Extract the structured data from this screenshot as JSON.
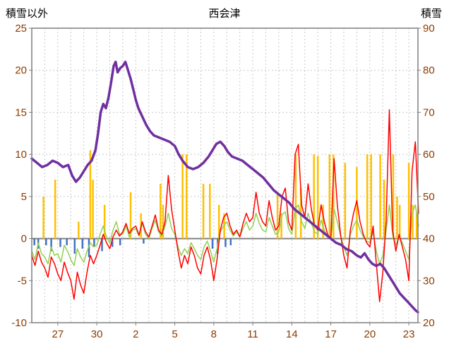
{
  "chart_data": {
    "type": "line",
    "title": "西会津",
    "left_axis": {
      "label": "積雪以外",
      "min": -10,
      "max": 25,
      "step": 5,
      "ticks": [
        25,
        20,
        15,
        10,
        5,
        0,
        -5,
        -10
      ]
    },
    "right_axis": {
      "label": "積雪",
      "min": 20,
      "max": 90,
      "step": 10,
      "ticks": [
        90,
        80,
        70,
        60,
        50,
        40,
        30,
        20
      ]
    },
    "x_axis": {
      "min": 0,
      "max": 29.7,
      "grid_step": 1,
      "ticks": [
        {
          "x": 2,
          "label": "27"
        },
        {
          "x": 5,
          "label": "30"
        },
        {
          "x": 8,
          "label": "2"
        },
        {
          "x": 11,
          "label": "5"
        },
        {
          "x": 14,
          "label": "8"
        },
        {
          "x": 17,
          "label": "11"
        },
        {
          "x": 20,
          "label": "14"
        },
        {
          "x": 23,
          "label": "17"
        },
        {
          "x": 26,
          "label": "20"
        },
        {
          "x": 29,
          "label": "23"
        }
      ]
    },
    "style": {
      "background": "#ffffff",
      "grid_color": "#c9c9c9",
      "zero_line_color": "#808080",
      "border_color": "#7f7f7f",
      "tick_label_color": "#8c3b00",
      "title_color": "#000000"
    },
    "series": [
      {
        "id": "orange-bars",
        "kind": "bar",
        "axis": "left",
        "color": "#FFC000",
        "width": 2.5,
        "points": [
          [
            0.9,
            5
          ],
          [
            1.8,
            7
          ],
          [
            3.6,
            2
          ],
          [
            4.5,
            10.5
          ],
          [
            4.7,
            7
          ],
          [
            5.6,
            4
          ],
          [
            7.6,
            5.5
          ],
          [
            8.4,
            3
          ],
          [
            9.9,
            6.5
          ],
          [
            10.1,
            4
          ],
          [
            11.6,
            10
          ],
          [
            11.9,
            10
          ],
          [
            13.2,
            6.5
          ],
          [
            13.7,
            6.5
          ],
          [
            14.4,
            4
          ],
          [
            14.8,
            3
          ],
          [
            18.9,
            5.5
          ],
          [
            19.2,
            3
          ],
          [
            20.3,
            10
          ],
          [
            20.7,
            6
          ],
          [
            21.7,
            10
          ],
          [
            22,
            9.8
          ],
          [
            22.4,
            4
          ],
          [
            22.9,
            10
          ],
          [
            23.2,
            10
          ],
          [
            24.1,
            9
          ],
          [
            25,
            8.5
          ],
          [
            25.8,
            10
          ],
          [
            26.1,
            10
          ],
          [
            26.8,
            10
          ],
          [
            27.1,
            7
          ],
          [
            27.8,
            10
          ],
          [
            28.1,
            5
          ],
          [
            28.3,
            4
          ],
          [
            29,
            9
          ],
          [
            29.3,
            4
          ],
          [
            29.6,
            3
          ]
        ]
      },
      {
        "id": "blue-bars",
        "kind": "bar",
        "axis": "left",
        "color": "#4472C4",
        "width": 2.5,
        "points": [
          [
            0.2,
            -0.8
          ],
          [
            0.5,
            -1.2
          ],
          [
            1.1,
            -0.8
          ],
          [
            1.5,
            -1.5
          ],
          [
            2.2,
            -1
          ],
          [
            2.7,
            -0.8
          ],
          [
            3.3,
            -1.8
          ],
          [
            3.9,
            -1.2
          ],
          [
            4.4,
            -2.2
          ],
          [
            4.8,
            -1
          ],
          [
            5.4,
            -1.5
          ],
          [
            6.2,
            -1
          ],
          [
            6.8,
            -0.8
          ],
          [
            8.6,
            -0.6
          ],
          [
            13.9,
            -1.2
          ],
          [
            14.3,
            -1.8
          ],
          [
            14.9,
            -1
          ],
          [
            15.3,
            -0.8
          ]
        ]
      },
      {
        "id": "green-line",
        "kind": "line",
        "axis": "left",
        "color": "#92D050",
        "width": 1.5,
        "x0": 0,
        "dx": 0.25,
        "values": [
          -1.5,
          -2.5,
          -0.5,
          -1.8,
          -2.2,
          -3,
          -1,
          -2,
          -1.8,
          -2.8,
          -0.8,
          -1.5,
          -2.5,
          -3.2,
          -1.2,
          -2.2,
          -2.8,
          -1.5,
          -0.5,
          -1,
          -0.8,
          0.5,
          1.5,
          0.2,
          -0.5,
          1,
          2,
          0.5,
          0.5,
          1.5,
          0.2,
          1,
          1.2,
          0.3,
          1.8,
          0.5,
          0,
          1.2,
          2.2,
          0.8,
          0.3,
          1.5,
          3,
          1.2,
          0.5,
          -1,
          -2,
          -1.2,
          -1.8,
          -0.5,
          -1.2,
          -2,
          -2.5,
          -1,
          -0.3,
          -1.5,
          -2.8,
          -1.2,
          0.8,
          1.5,
          2,
          1,
          0.3,
          0.8,
          0.2,
          1.2,
          2,
          1,
          1.5,
          3,
          1.8,
          1,
          0.8,
          2.5,
          1.5,
          0.5,
          0.8,
          2.8,
          3.2,
          1.2,
          0.5,
          3.5,
          4,
          2,
          1.2,
          3,
          1.8,
          0.8,
          0.5,
          2.2,
          1,
          0.2,
          0,
          3.5,
          2,
          0.3,
          -1,
          -2,
          0.5,
          1.5,
          2.2,
          1,
          0.2,
          -0.3,
          -0.5,
          0.8,
          -1.5,
          -3,
          -2,
          1,
          4,
          0.5,
          -0.8,
          0.3,
          -0.5,
          -1.5,
          -2.5,
          3,
          4,
          1.5
        ]
      },
      {
        "id": "red-line",
        "kind": "line",
        "axis": "left",
        "color": "#FF0000",
        "width": 1.5,
        "x0": 0,
        "dx": 0.25,
        "values": [
          -2,
          -3.2,
          -1.5,
          -2.8,
          -3.5,
          -4.6,
          -2.2,
          -3,
          -4.2,
          -5,
          -2.8,
          -4,
          -5,
          -7.2,
          -4,
          -5.5,
          -6.5,
          -4,
          -2,
          -3,
          -2,
          -0.8,
          0.5,
          -0.5,
          -1.2,
          0.2,
          1,
          0.3,
          0.8,
          1.8,
          0.6,
          1.2,
          1.5,
          0.4,
          2,
          0.8,
          0.2,
          1.5,
          2.8,
          1,
          0.5,
          2,
          7.5,
          3.5,
          1,
          -1.5,
          -3.5,
          -2,
          -3,
          -1,
          -2,
          -3.5,
          -4.2,
          -2,
          -1,
          -2.5,
          -5,
          -2.5,
          1,
          2.5,
          3,
          1.5,
          0.5,
          1,
          0.2,
          1.8,
          3,
          2,
          2.5,
          5.5,
          3,
          2,
          1.5,
          4.5,
          2.5,
          1,
          1.5,
          5,
          6,
          2,
          1,
          10,
          11.2,
          4,
          2.5,
          6.5,
          3.5,
          1.5,
          1,
          4,
          2,
          0.5,
          0,
          9.5,
          4,
          0.5,
          -2,
          -3.5,
          1,
          3,
          4.5,
          2,
          0.5,
          -0.5,
          -1,
          1.5,
          -3,
          -7.5,
          -4,
          2,
          15.3,
          1,
          -1.5,
          0.5,
          -1,
          -2.5,
          -5,
          8,
          11.5,
          3
        ]
      },
      {
        "id": "snow-depth-line",
        "kind": "line",
        "axis": "right",
        "color": "#7030A0",
        "width": 3.5,
        "points": [
          [
            0,
            59
          ],
          [
            0.4,
            58
          ],
          [
            0.8,
            57
          ],
          [
            1.2,
            57.5
          ],
          [
            1.6,
            58.5
          ],
          [
            2,
            58
          ],
          [
            2.4,
            57
          ],
          [
            2.8,
            57.5
          ],
          [
            3.1,
            55
          ],
          [
            3.4,
            53.5
          ],
          [
            3.7,
            54.5
          ],
          [
            4,
            56
          ],
          [
            4.3,
            57.5
          ],
          [
            4.6,
            58.5
          ],
          [
            4.9,
            61
          ],
          [
            5.1,
            65
          ],
          [
            5.3,
            70
          ],
          [
            5.5,
            72
          ],
          [
            5.7,
            71
          ],
          [
            5.9,
            73.5
          ],
          [
            6.1,
            77
          ],
          [
            6.3,
            81
          ],
          [
            6.45,
            82
          ],
          [
            6.6,
            79.5
          ],
          [
            6.8,
            80.5
          ],
          [
            7,
            81
          ],
          [
            7.2,
            82
          ],
          [
            7.4,
            80
          ],
          [
            7.6,
            78
          ],
          [
            7.8,
            75.5
          ],
          [
            8,
            73
          ],
          [
            8.2,
            71
          ],
          [
            8.5,
            69
          ],
          [
            8.8,
            67
          ],
          [
            9.1,
            65.5
          ],
          [
            9.4,
            64.5
          ],
          [
            9.8,
            64
          ],
          [
            10.2,
            63.5
          ],
          [
            10.6,
            63
          ],
          [
            11,
            62
          ],
          [
            11.3,
            60
          ],
          [
            11.6,
            58.5
          ],
          [
            12,
            57
          ],
          [
            12.4,
            56.5
          ],
          [
            12.8,
            57
          ],
          [
            13.2,
            58
          ],
          [
            13.6,
            59.5
          ],
          [
            13.9,
            61
          ],
          [
            14.2,
            62.5
          ],
          [
            14.5,
            63
          ],
          [
            14.8,
            62
          ],
          [
            15.1,
            60.5
          ],
          [
            15.4,
            59.5
          ],
          [
            15.8,
            59
          ],
          [
            16.2,
            58.5
          ],
          [
            16.6,
            57.5
          ],
          [
            17,
            56.5
          ],
          [
            17.4,
            55.5
          ],
          [
            17.8,
            54.5
          ],
          [
            18.2,
            53
          ],
          [
            18.6,
            51.5
          ],
          [
            19,
            50.5
          ],
          [
            19.4,
            49.5
          ],
          [
            19.8,
            48.5
          ],
          [
            20.2,
            47
          ],
          [
            20.6,
            46
          ],
          [
            21,
            45
          ],
          [
            21.4,
            44
          ],
          [
            21.8,
            43
          ],
          [
            22.2,
            42
          ],
          [
            22.6,
            41
          ],
          [
            23,
            40
          ],
          [
            23.4,
            39
          ],
          [
            23.8,
            38.5
          ],
          [
            24.2,
            37.5
          ],
          [
            24.6,
            37
          ],
          [
            25,
            36
          ],
          [
            25.3,
            35.5
          ],
          [
            25.6,
            36.5
          ],
          [
            25.9,
            35
          ],
          [
            26.2,
            34
          ],
          [
            26.5,
            33.5
          ],
          [
            26.8,
            34
          ],
          [
            27.1,
            33
          ],
          [
            27.4,
            31.5
          ],
          [
            27.7,
            30
          ],
          [
            28,
            28.5
          ],
          [
            28.3,
            27
          ],
          [
            28.6,
            26
          ],
          [
            28.9,
            25
          ],
          [
            29.2,
            24
          ],
          [
            29.5,
            23
          ],
          [
            29.7,
            22.5
          ]
        ]
      }
    ]
  }
}
